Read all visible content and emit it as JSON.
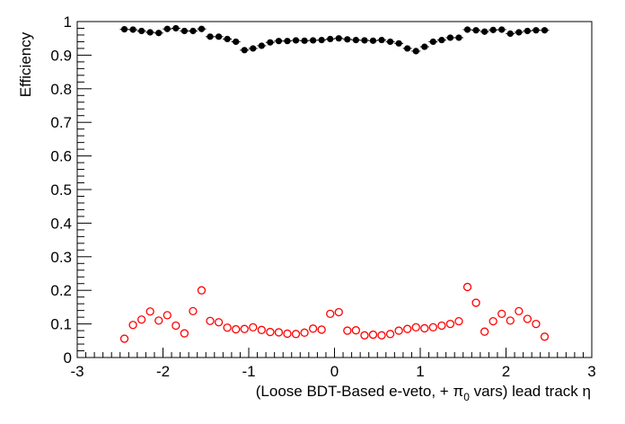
{
  "chart_data": {
    "type": "scatter",
    "xlabel_main": "(Loose BDT-Based e-veto, +  ",
    "xlabel_pi": "π",
    "xlabel_sub": "0",
    "xlabel_rest": " vars)  lead track  ",
    "xlabel_eta": "η",
    "ylabel": "Efficiency",
    "xlim": [
      -3,
      3
    ],
    "ylim": [
      0,
      1
    ],
    "x_ticks": [
      "-3",
      "-2",
      "-1",
      "0",
      "1",
      "2",
      "3"
    ],
    "y_ticks": [
      "0",
      "0.1",
      "0.2",
      "0.3",
      "0.4",
      "0.5",
      "0.6",
      "0.7",
      "0.8",
      "0.9",
      "1"
    ],
    "grid": false,
    "x": [
      -2.45,
      -2.35,
      -2.25,
      -2.15,
      -2.05,
      -1.95,
      -1.85,
      -1.75,
      -1.65,
      -1.55,
      -1.45,
      -1.35,
      -1.25,
      -1.15,
      -1.05,
      -0.95,
      -0.85,
      -0.75,
      -0.65,
      -0.55,
      -0.45,
      -0.35,
      -0.25,
      -0.15,
      -0.05,
      0.05,
      0.15,
      0.25,
      0.35,
      0.45,
      0.55,
      0.65,
      0.75,
      0.85,
      0.95,
      1.05,
      1.15,
      1.25,
      1.35,
      1.45,
      1.55,
      1.65,
      1.75,
      1.85,
      1.95,
      2.05,
      2.15,
      2.25,
      2.35,
      2.45
    ],
    "series": [
      {
        "color": "#000000",
        "marker": "filled-circle",
        "values": [
          0.977,
          0.976,
          0.972,
          0.968,
          0.966,
          0.978,
          0.98,
          0.972,
          0.972,
          0.978,
          0.955,
          0.955,
          0.948,
          0.94,
          0.915,
          0.92,
          0.928,
          0.938,
          0.942,
          0.942,
          0.944,
          0.943,
          0.944,
          0.945,
          0.948,
          0.95,
          0.947,
          0.945,
          0.944,
          0.943,
          0.945,
          0.94,
          0.935,
          0.92,
          0.912,
          0.925,
          0.94,
          0.945,
          0.952,
          0.952,
          0.976,
          0.974,
          0.97,
          0.975,
          0.976,
          0.964,
          0.968,
          0.972,
          0.974,
          0.974
        ]
      },
      {
        "color": "#ff0000",
        "marker": "open-circle",
        "values": [
          0.056,
          0.097,
          0.113,
          0.137,
          0.11,
          0.126,
          0.095,
          0.072,
          0.138,
          0.2,
          0.109,
          0.105,
          0.089,
          0.084,
          0.085,
          0.09,
          0.082,
          0.076,
          0.075,
          0.071,
          0.07,
          0.074,
          0.086,
          0.083,
          0.13,
          0.135,
          0.08,
          0.081,
          0.066,
          0.068,
          0.066,
          0.07,
          0.08,
          0.085,
          0.09,
          0.087,
          0.09,
          0.095,
          0.1,
          0.108,
          0.21,
          0.163,
          0.077,
          0.108,
          0.13,
          0.11,
          0.138,
          0.115,
          0.1,
          0.062
        ]
      }
    ]
  }
}
